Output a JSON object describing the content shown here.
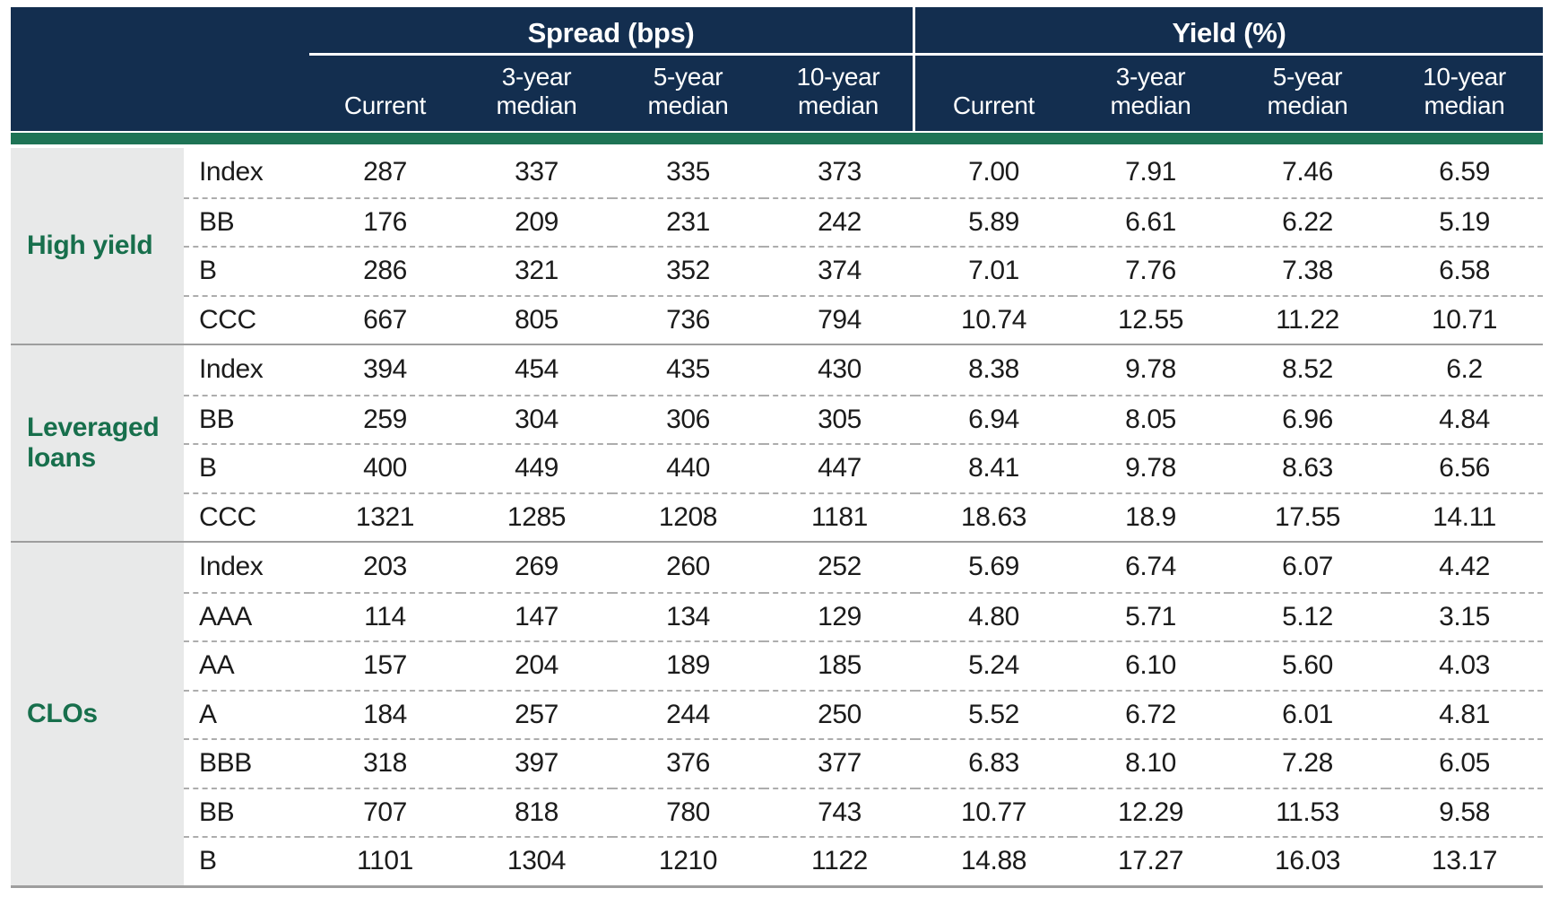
{
  "colors": {
    "header_navy": "#132e4f",
    "green_rule": "#1e7355",
    "category_green": "#176f4c",
    "category_bg": "#e8e9e9",
    "separator_gray": "#9e9e9e",
    "dashed_gray": "#adadad"
  },
  "chart_data": {
    "type": "table",
    "column_groups": [
      {
        "label": "Spread (bps)",
        "columns": [
          "Current",
          "3-year\nmedian",
          "5-year\nmedian",
          "10-year\nmedian"
        ]
      },
      {
        "label": "Yield (%)",
        "columns": [
          "Current",
          "3-year\nmedian",
          "5-year\nmedian",
          "10-year\nmedian"
        ]
      }
    ],
    "row_groups": [
      {
        "label": "High yield",
        "rows": [
          {
            "label": "Index",
            "spread": [
              "287",
              "337",
              "335",
              "373"
            ],
            "yield": [
              "7.00",
              "7.91",
              "7.46",
              "6.59"
            ]
          },
          {
            "label": "BB",
            "spread": [
              "176",
              "209",
              "231",
              "242"
            ],
            "yield": [
              "5.89",
              "6.61",
              "6.22",
              "5.19"
            ]
          },
          {
            "label": "B",
            "spread": [
              "286",
              "321",
              "352",
              "374"
            ],
            "yield": [
              "7.01",
              "7.76",
              "7.38",
              "6.58"
            ]
          },
          {
            "label": "CCC",
            "spread": [
              "667",
              "805",
              "736",
              "794"
            ],
            "yield": [
              "10.74",
              "12.55",
              "11.22",
              "10.71"
            ]
          }
        ]
      },
      {
        "label": "Leveraged loans",
        "rows": [
          {
            "label": "Index",
            "spread": [
              "394",
              "454",
              "435",
              "430"
            ],
            "yield": [
              "8.38",
              "9.78",
              "8.52",
              "6.2"
            ]
          },
          {
            "label": "BB",
            "spread": [
              "259",
              "304",
              "306",
              "305"
            ],
            "yield": [
              "6.94",
              "8.05",
              "6.96",
              "4.84"
            ]
          },
          {
            "label": "B",
            "spread": [
              "400",
              "449",
              "440",
              "447"
            ],
            "yield": [
              "8.41",
              "9.78",
              "8.63",
              "6.56"
            ]
          },
          {
            "label": "CCC",
            "spread": [
              "1321",
              "1285",
              "1208",
              "1181"
            ],
            "yield": [
              "18.63",
              "18.9",
              "17.55",
              "14.11"
            ]
          }
        ]
      },
      {
        "label": "CLOs",
        "rows": [
          {
            "label": "Index",
            "spread": [
              "203",
              "269",
              "260",
              "252"
            ],
            "yield": [
              "5.69",
              "6.74",
              "6.07",
              "4.42"
            ]
          },
          {
            "label": "AAA",
            "spread": [
              "114",
              "147",
              "134",
              "129"
            ],
            "yield": [
              "4.80",
              "5.71",
              "5.12",
              "3.15"
            ]
          },
          {
            "label": "AA",
            "spread": [
              "157",
              "204",
              "189",
              "185"
            ],
            "yield": [
              "5.24",
              "6.10",
              "5.60",
              "4.03"
            ]
          },
          {
            "label": "A",
            "spread": [
              "184",
              "257",
              "244",
              "250"
            ],
            "yield": [
              "5.52",
              "6.72",
              "6.01",
              "4.81"
            ]
          },
          {
            "label": "BBB",
            "spread": [
              "318",
              "397",
              "376",
              "377"
            ],
            "yield": [
              "6.83",
              "8.10",
              "7.28",
              "6.05"
            ]
          },
          {
            "label": "BB",
            "spread": [
              "707",
              "818",
              "780",
              "743"
            ],
            "yield": [
              "10.77",
              "12.29",
              "11.53",
              "9.58"
            ]
          },
          {
            "label": "B",
            "spread": [
              "1101",
              "1304",
              "1210",
              "1122"
            ],
            "yield": [
              "14.88",
              "17.27",
              "16.03",
              "13.17"
            ]
          }
        ]
      }
    ]
  }
}
